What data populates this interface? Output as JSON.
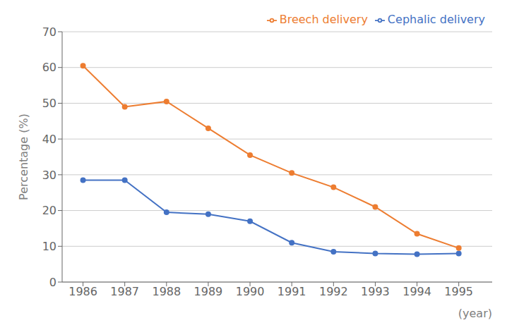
{
  "chart_data": {
    "type": "line",
    "x": [
      1986,
      1987,
      1988,
      1989,
      1990,
      1991,
      1992,
      1993,
      1994,
      1995
    ],
    "series": [
      {
        "name": "Cephalic delivery",
        "color": "#4472C4",
        "values": [
          28.5,
          28.5,
          19.5,
          19.0,
          17.0,
          11.0,
          8.5,
          8.0,
          7.8,
          8.0
        ]
      },
      {
        "name": "Breech delivery",
        "color": "#ED7D31",
        "values": [
          60.5,
          49.0,
          50.5,
          43.0,
          35.5,
          30.5,
          26.5,
          21.0,
          13.5,
          9.5
        ]
      }
    ],
    "xlabel": "(year)",
    "ylabel": "Percentage (%)",
    "xlim": [
      1985.5,
      1995.8
    ],
    "xticks": [
      1986,
      1987,
      1988,
      1989,
      1990,
      1991,
      1992,
      1993,
      1994,
      1995
    ],
    "ylim": [
      0,
      70
    ],
    "yticks": [
      0,
      10,
      20,
      30,
      40,
      50,
      60,
      70
    ],
    "grid": true,
    "legend": "upper right",
    "marker": "o"
  }
}
